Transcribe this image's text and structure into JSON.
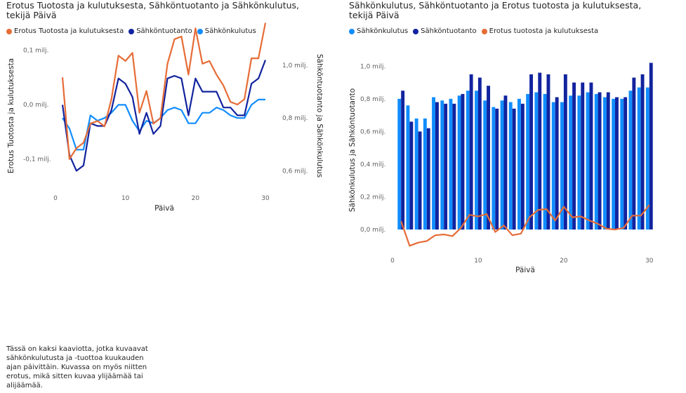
{
  "chart_data": [
    {
      "type": "line",
      "title": "Erotus Tuotosta ja kulutuksesta, Sähköntuotanto ja Sähkönkulutus, tekijä Päivä",
      "xlabel": "Päivä",
      "ylabel_left": "Erotus Tuotosta ja kulutuksesta",
      "ylabel_right": "Sähköntuotanto ja Sähkönkulutus",
      "x_ticks": [
        "0",
        "10",
        "20",
        "30"
      ],
      "y_left_ticks": [
        "-0,1 milj.",
        "0,0 milj.",
        "0,1 milj."
      ],
      "y_right_ticks": [
        "0,6 milj.",
        "0,8 milj.",
        "1,0 milj."
      ],
      "xlim": [
        0,
        31
      ],
      "ylim_left": [
        -0.17,
        0.14
      ],
      "ylim_right": [
        0.5,
        1.1
      ],
      "legend_position": "top-left",
      "x": [
        1,
        2,
        3,
        4,
        5,
        6,
        7,
        8,
        9,
        10,
        11,
        12,
        13,
        14,
        15,
        16,
        17,
        18,
        19,
        20,
        21,
        22,
        23,
        24,
        25,
        26,
        27,
        28,
        29,
        30
      ],
      "series": [
        {
          "name": "Erotus Tuotosta ja kulutuksesta",
          "axis": "left",
          "color": "#e66c37",
          "values": [
            0.05,
            -0.1,
            -0.08,
            -0.07,
            -0.035,
            -0.03,
            -0.04,
            0.01,
            0.09,
            0.08,
            0.095,
            -0.015,
            0.025,
            -0.035,
            -0.025,
            0.075,
            0.12,
            0.125,
            0.055,
            0.14,
            0.075,
            0.08,
            0.055,
            0.035,
            0.005,
            0.0,
            0.01,
            0.085,
            0.085,
            0.15
          ]
        },
        {
          "name": "Sähköntuotanto",
          "axis": "right",
          "color": "#12239e",
          "values": [
            0.85,
            0.66,
            0.6,
            0.62,
            0.78,
            0.77,
            0.77,
            0.83,
            0.95,
            0.93,
            0.88,
            0.74,
            0.82,
            0.74,
            0.77,
            0.95,
            0.96,
            0.95,
            0.81,
            0.95,
            0.9,
            0.9,
            0.9,
            0.84,
            0.84,
            0.81,
            0.81,
            0.93,
            0.95,
            1.02
          ]
        },
        {
          "name": "Sähkönkulutus",
          "axis": "right",
          "color": "#118dff",
          "values": [
            0.8,
            0.76,
            0.68,
            0.68,
            0.81,
            0.79,
            0.8,
            0.82,
            0.85,
            0.85,
            0.79,
            0.75,
            0.79,
            0.78,
            0.8,
            0.83,
            0.84,
            0.83,
            0.78,
            0.78,
            0.82,
            0.82,
            0.84,
            0.83,
            0.81,
            0.8,
            0.8,
            0.85,
            0.87,
            0.87
          ]
        }
      ]
    },
    {
      "type": "bar",
      "title": "Sähkönkulutus, Sähköntuotanto ja Erotus tuotosta ja kulutuksesta, tekijä Päivä",
      "xlabel": "Päivä",
      "ylabel": "Sähkönkulutus ja Sähköntuotanto",
      "x_ticks": [
        "0",
        "10",
        "20",
        "30"
      ],
      "y_ticks": [
        "0,0 milj.",
        "0,2 milj.",
        "0,4 milj.",
        "0,6 milj.",
        "0,8 milj.",
        "1,0 milj."
      ],
      "xlim": [
        0,
        31
      ],
      "ylim": [
        -0.12,
        1.07
      ],
      "legend_position": "top-left",
      "x": [
        1,
        2,
        3,
        4,
        5,
        6,
        7,
        8,
        9,
        10,
        11,
        12,
        13,
        14,
        15,
        16,
        17,
        18,
        19,
        20,
        21,
        22,
        23,
        24,
        25,
        26,
        27,
        28,
        29,
        30
      ],
      "series": [
        {
          "name": "Sähkönkulutus",
          "type": "bar",
          "color": "#118dff",
          "values": [
            0.8,
            0.76,
            0.68,
            0.68,
            0.81,
            0.79,
            0.8,
            0.82,
            0.85,
            0.85,
            0.79,
            0.75,
            0.79,
            0.78,
            0.8,
            0.83,
            0.84,
            0.83,
            0.78,
            0.78,
            0.82,
            0.82,
            0.84,
            0.83,
            0.81,
            0.8,
            0.8,
            0.85,
            0.87,
            0.87
          ]
        },
        {
          "name": "Sähköntuotanto",
          "type": "bar",
          "color": "#12239e",
          "values": [
            0.85,
            0.66,
            0.6,
            0.62,
            0.78,
            0.77,
            0.77,
            0.83,
            0.95,
            0.93,
            0.88,
            0.74,
            0.82,
            0.74,
            0.77,
            0.95,
            0.96,
            0.95,
            0.81,
            0.95,
            0.9,
            0.9,
            0.9,
            0.84,
            0.84,
            0.81,
            0.81,
            0.93,
            0.95,
            1.02
          ]
        },
        {
          "name": "Erotus tuotosta ja kulutuksesta",
          "type": "line",
          "color": "#e66c37",
          "values": [
            0.05,
            -0.1,
            -0.08,
            -0.07,
            -0.035,
            -0.03,
            -0.04,
            0.01,
            0.09,
            0.08,
            0.095,
            -0.015,
            0.025,
            -0.035,
            -0.025,
            0.075,
            0.12,
            0.125,
            0.055,
            0.14,
            0.075,
            0.08,
            0.055,
            0.035,
            0.005,
            0.0,
            0.01,
            0.085,
            0.085,
            0.15
          ]
        }
      ]
    }
  ],
  "description_text": "Tässä on kaksi kaaviotta, jotka kuvaavat sähkönkulutusta ja -tuottoa kuukauden ajan päivittäin. Kuvassa on myös niitten erotus, mikä sitten kuvaa ylijäämää tai alijäämää."
}
